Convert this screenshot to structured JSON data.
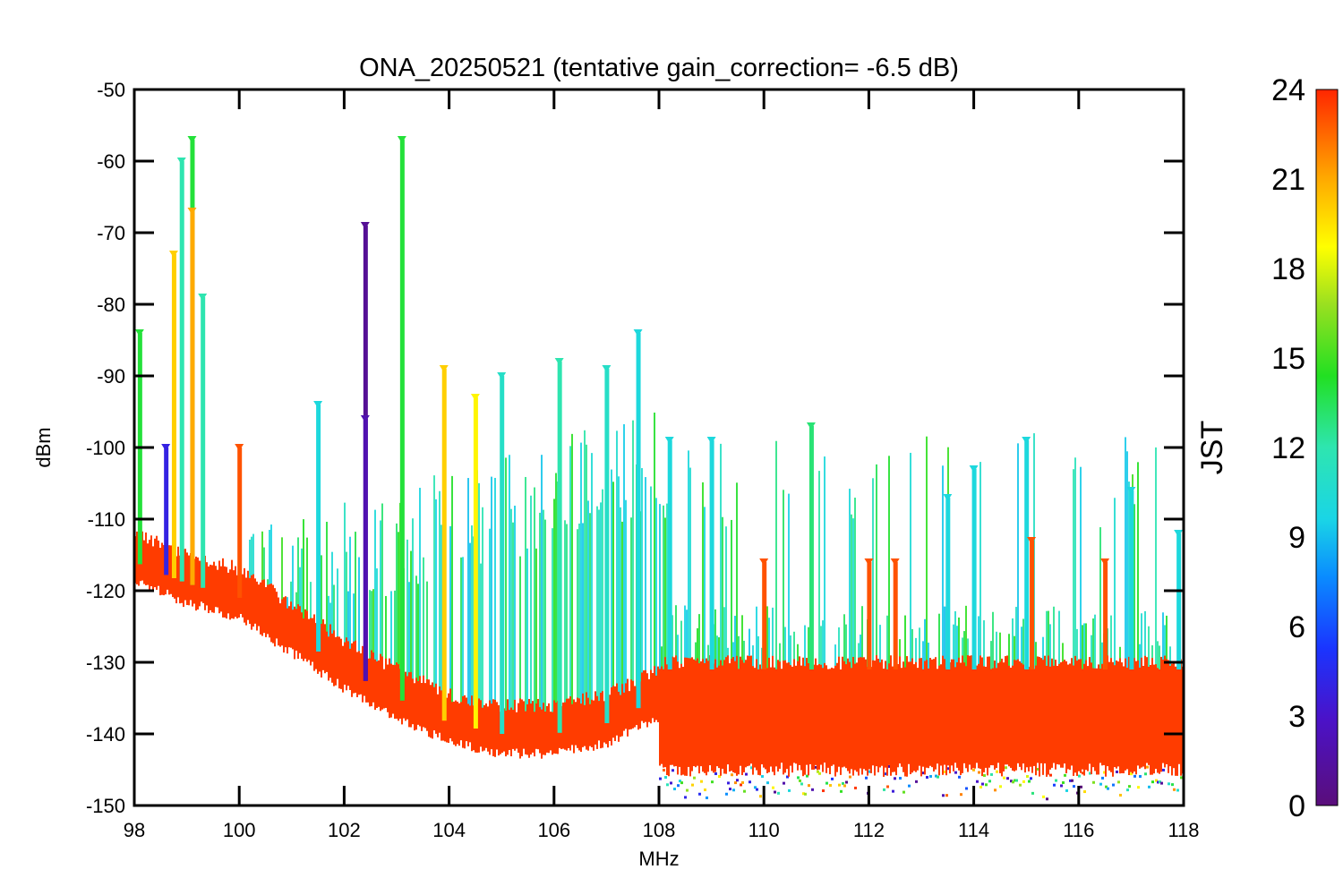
{
  "chart_data": {
    "type": "scatter",
    "title": "ONA_20250521 (tentative gain_correction= -6.5 dB)",
    "xlabel": "MHz",
    "ylabel": "dBm",
    "xlim": [
      98,
      118
    ],
    "ylim": [
      -150,
      -50
    ],
    "xticks": [
      98,
      100,
      102,
      104,
      106,
      108,
      110,
      112,
      114,
      116,
      118
    ],
    "yticks": [
      -50,
      -60,
      -70,
      -80,
      -90,
      -100,
      -110,
      -120,
      -130,
      -140,
      -150
    ],
    "colorbar": {
      "label": "JST",
      "range": [
        0,
        24
      ],
      "ticks": [
        0,
        3,
        6,
        9,
        12,
        15,
        18,
        21,
        24
      ],
      "colormap": "rainbow (purple-blue-cyan-green-yellow-orange-red)"
    },
    "noise_floor": {
      "description": "Dense red (JST ~23-24) noise floor trace",
      "points": [
        [
          98.0,
          -116
        ],
        [
          99.0,
          -119
        ],
        [
          100.0,
          -121
        ],
        [
          101.0,
          -126
        ],
        [
          102.0,
          -131
        ],
        [
          103.0,
          -135
        ],
        [
          104.0,
          -138.5
        ],
        [
          105.0,
          -140
        ],
        [
          106.0,
          -140
        ],
        [
          107.0,
          -138.5
        ],
        [
          108.0,
          -135
        ],
        [
          108.01,
          -134
        ],
        [
          118.0,
          -135
        ]
      ],
      "band_above_108_MHz": [
        -146,
        -131
      ]
    },
    "series": [
      {
        "name": "signal spikes",
        "points": [
          {
            "x": 98.1,
            "y": -84,
            "jst": 14
          },
          {
            "x": 98.6,
            "y": -100,
            "jst": 4
          },
          {
            "x": 98.75,
            "y": -73,
            "jst": 20
          },
          {
            "x": 98.9,
            "y": -60,
            "jst": 12
          },
          {
            "x": 99.1,
            "y": -57,
            "jst": 14
          },
          {
            "x": 99.1,
            "y": -67,
            "jst": 21
          },
          {
            "x": 99.3,
            "y": -79,
            "jst": 12
          },
          {
            "x": 100.0,
            "y": -100,
            "jst": 23
          },
          {
            "x": 101.5,
            "y": -94,
            "jst": 10
          },
          {
            "x": 102.4,
            "y": -69,
            "jst": 1
          },
          {
            "x": 102.4,
            "y": -96,
            "jst": 2
          },
          {
            "x": 103.1,
            "y": -57,
            "jst": 14
          },
          {
            "x": 103.9,
            "y": -89,
            "jst": 20
          },
          {
            "x": 104.5,
            "y": -93,
            "jst": 19
          },
          {
            "x": 105.0,
            "y": -90,
            "jst": 11
          },
          {
            "x": 106.1,
            "y": -88,
            "jst": 12
          },
          {
            "x": 107.0,
            "y": -89,
            "jst": 11
          },
          {
            "x": 107.6,
            "y": -84,
            "jst": 10
          },
          {
            "x": 108.2,
            "y": -99,
            "jst": 10
          },
          {
            "x": 109.0,
            "y": -99,
            "jst": 10
          },
          {
            "x": 110.0,
            "y": -116,
            "jst": 23
          },
          {
            "x": 110.9,
            "y": -97,
            "jst": 13
          },
          {
            "x": 112.0,
            "y": -116,
            "jst": 23
          },
          {
            "x": 112.5,
            "y": -116,
            "jst": 23
          },
          {
            "x": 113.5,
            "y": -107,
            "jst": 10
          },
          {
            "x": 114.0,
            "y": -103,
            "jst": 10
          },
          {
            "x": 115.0,
            "y": -99,
            "jst": 10
          },
          {
            "x": 115.1,
            "y": -113,
            "jst": 23
          },
          {
            "x": 116.5,
            "y": -116,
            "jst": 23
          },
          {
            "x": 117.0,
            "y": -106,
            "jst": 10
          },
          {
            "x": 117.9,
            "y": -112,
            "jst": 10
          }
        ]
      }
    ]
  }
}
